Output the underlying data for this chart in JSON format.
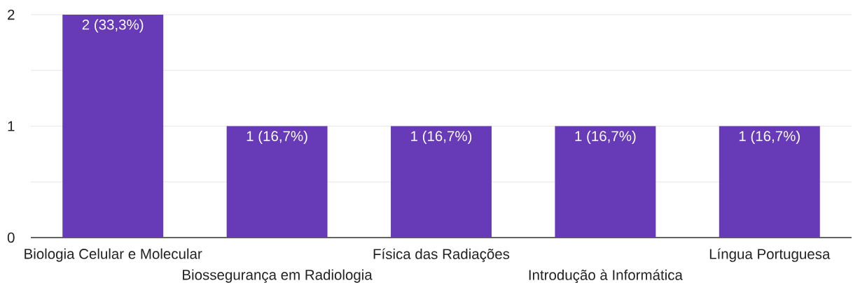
{
  "chart_data": {
    "type": "bar",
    "categories": [
      "Biologia Celular e Molecular",
      "Biossegurança em Radiologia",
      "Física das Radiações",
      "Introdução à Informática",
      "Língua Portuguesa"
    ],
    "values": [
      2,
      1,
      1,
      1,
      1
    ],
    "color": "#673ab7",
    "value_labels": [
      "2 (33,3%)",
      "1 (16,7%)",
      "1 (16,7%)",
      "1 (16,7%)",
      "1 (16,7%)"
    ],
    "ylim": [
      0,
      2
    ],
    "yticks": [
      0,
      {
        "value": 0.5,
        "label": null
      },
      1,
      {
        "value": 1.5,
        "label": null
      },
      2
    ],
    "grid": "y"
  }
}
